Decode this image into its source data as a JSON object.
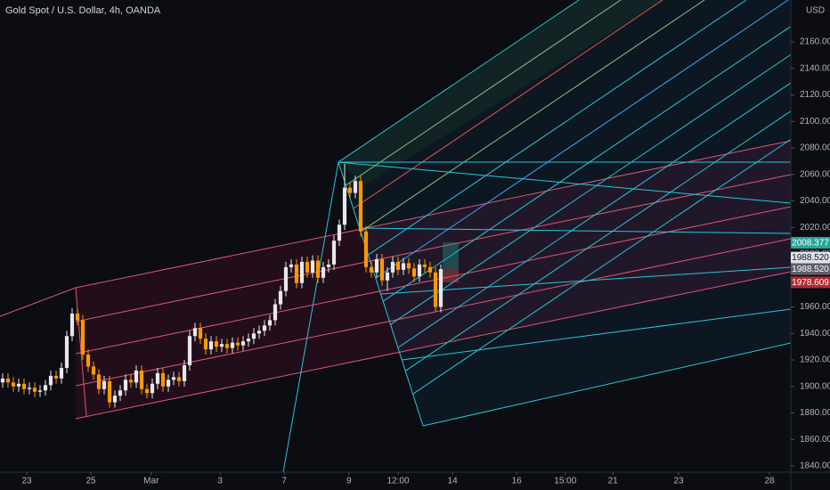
{
  "chart_data": {
    "type": "candlestick",
    "title": "Gold Spot / U.S. Dollar, 4h, OANDA",
    "currency": "USD",
    "up_color": "#e8e8ea",
    "down_color": "#ff9800",
    "xlim": [
      -0.5,
      147.5
    ],
    "xticks": [
      {
        "value": 4.5,
        "label": "23"
      },
      {
        "value": 16.5,
        "label": "25"
      },
      {
        "value": 27.8,
        "label": "Mar"
      },
      {
        "value": 40.7,
        "label": "3"
      },
      {
        "value": 52.7,
        "label": "7"
      },
      {
        "value": 64.8,
        "label": "9"
      },
      {
        "value": 74,
        "label": "12:00"
      },
      {
        "value": 84.2,
        "label": "14"
      },
      {
        "value": 96.2,
        "label": "16"
      },
      {
        "value": 105.3,
        "label": "15:00"
      },
      {
        "value": 114.2,
        "label": "21"
      },
      {
        "value": 126.5,
        "label": "23"
      },
      {
        "value": 143.5,
        "label": "28"
      }
    ],
    "ylim": [
      1835.3,
      2191.6
    ],
    "yticks": [
      {
        "value": 1840,
        "label": "1840.000"
      },
      {
        "value": 1860,
        "label": "1860.000"
      },
      {
        "value": 1880,
        "label": "1880.000"
      },
      {
        "value": 1900,
        "label": "1900.000"
      },
      {
        "value": 1920,
        "label": "1920.000"
      },
      {
        "value": 1940,
        "label": "1940.000"
      },
      {
        "value": 1960,
        "label": "1960.000"
      },
      {
        "value": 1980,
        "label": "1980.000"
      },
      {
        "value": 2000,
        "label": "2000.000"
      },
      {
        "value": 2020,
        "label": "2020.000"
      },
      {
        "value": 2040,
        "label": "2040.000"
      },
      {
        "value": 2060,
        "label": "2060.000"
      },
      {
        "value": 2080,
        "label": "2080.000"
      },
      {
        "value": 2100,
        "label": "2100.000"
      },
      {
        "value": 2120,
        "label": "2120.000"
      },
      {
        "value": 2140,
        "label": "2140.000"
      },
      {
        "value": 2160,
        "label": "2160.000"
      }
    ],
    "open": [
      1903,
      1906,
      1903,
      1900,
      1902,
      1898,
      1899,
      1896,
      1897,
      1901,
      1908,
      1906,
      1914,
      1938,
      1955,
      1950,
      1924,
      1915,
      1909,
      1898,
      1904,
      1888,
      1893,
      1897,
      1905,
      1903,
      1912,
      1898,
      1895,
      1902,
      1910,
      1900,
      1905,
      1907,
      1904,
      1916,
      1938,
      1944,
      1936,
      1928,
      1934,
      1930,
      1932,
      1929,
      1933,
      1931,
      1934,
      1936,
      1940,
      1942,
      1946,
      1950,
      1962,
      1972,
      1990,
      1992,
      1978,
      1994,
      1986,
      1995,
      1982,
      1990,
      1992,
      2010,
      2022,
      2050,
      2046,
      2055,
      2017,
      1990,
      1986,
      1996,
      1980,
      1986,
      1994,
      1988,
      1993,
      1989,
      1983,
      1992,
      1990,
      1986,
      1960
    ],
    "high": [
      1910,
      1910,
      1907,
      1906,
      1906,
      1903,
      1903,
      1901,
      1905,
      1912,
      1912,
      1918,
      1942,
      1959,
      1959,
      1954,
      1928,
      1919,
      1913,
      1908,
      1908,
      1897,
      1901,
      1909,
      1909,
      1916,
      1916,
      1902,
      1906,
      1914,
      1914,
      1909,
      1911,
      1911,
      1920,
      1942,
      1948,
      1948,
      1940,
      1938,
      1938,
      1936,
      1936,
      1937,
      1937,
      1938,
      1940,
      1944,
      1946,
      1950,
      1954,
      1966,
      1976,
      1994,
      1996,
      1996,
      1998,
      1998,
      1999,
      1999,
      1994,
      1996,
      2014,
      2026,
      2068,
      2054,
      2059,
      2059,
      2021,
      1994,
      2000,
      2000,
      1990,
      1998,
      1998,
      1997,
      1997,
      1993,
      1996,
      1996,
      1994,
      1990,
      1992
    ],
    "low": [
      1899,
      1899,
      1896,
      1896,
      1894,
      1894,
      1892,
      1892,
      1893,
      1897,
      1902,
      1902,
      1910,
      1934,
      1946,
      1920,
      1911,
      1905,
      1894,
      1894,
      1884,
      1884,
      1889,
      1893,
      1899,
      1899,
      1894,
      1891,
      1891,
      1898,
      1896,
      1896,
      1901,
      1900,
      1900,
      1912,
      1934,
      1932,
      1924,
      1924,
      1926,
      1926,
      1925,
      1925,
      1927,
      1927,
      1930,
      1932,
      1936,
      1938,
      1942,
      1946,
      1958,
      1968,
      1986,
      1974,
      1974,
      1982,
      1982,
      1978,
      1978,
      1986,
      1988,
      2006,
      2018,
      2042,
      2042,
      2013,
      1986,
      1982,
      1982,
      1976,
      1972,
      1982,
      1984,
      1984,
      1985,
      1979,
      1979,
      1986,
      1982,
      1956,
      1956
    ],
    "close": [
      1906,
      1903,
      1900,
      1902,
      1898,
      1899,
      1896,
      1897,
      1901,
      1908,
      1906,
      1914,
      1938,
      1955,
      1950,
      1924,
      1915,
      1909,
      1898,
      1904,
      1888,
      1893,
      1897,
      1905,
      1903,
      1912,
      1898,
      1895,
      1902,
      1910,
      1900,
      1905,
      1907,
      1904,
      1916,
      1938,
      1944,
      1936,
      1928,
      1934,
      1930,
      1932,
      1929,
      1933,
      1931,
      1934,
      1936,
      1940,
      1942,
      1946,
      1950,
      1962,
      1972,
      1990,
      1992,
      1978,
      1994,
      1986,
      1995,
      1982,
      1990,
      1992,
      2010,
      2022,
      2050,
      2046,
      2055,
      2017,
      1990,
      1986,
      1996,
      1980,
      1986,
      1994,
      1988,
      1993,
      1989,
      1983,
      1992,
      1990,
      1986,
      1960,
      1988.52
    ],
    "price_labels": [
      {
        "value": 2008.377,
        "label": "2008.377",
        "color": "#26a69a",
        "text_color": "#ffffff"
      },
      {
        "value": 1988.52,
        "label": "1988.520",
        "color": "#e0e3eb",
        "text_color": "#131722"
      },
      {
        "value": 1988.52,
        "label": "1988.520",
        "color": "#5d606b",
        "text_color": "#ffffff"
      },
      {
        "value": 1978.609,
        "label": "1978.609",
        "color": "#b22833",
        "text_color": "#ffffff"
      }
    ]
  }
}
